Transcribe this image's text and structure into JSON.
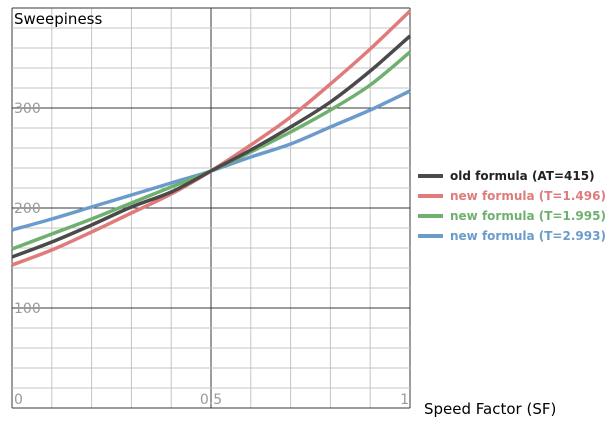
{
  "chart_data": {
    "type": "line",
    "title": "",
    "ylabel": "Sweepiness",
    "xlabel": "Speed Factor (SF)",
    "xlim": [
      0,
      1
    ],
    "ylim": [
      0,
      400
    ],
    "grid": true,
    "legend_position": "right",
    "x_tick_labels": [
      "0",
      "0.5",
      "1"
    ],
    "x_tick_values": [
      0,
      0.5,
      1
    ],
    "y_tick_labels": [
      "100",
      "200",
      "300"
    ],
    "y_tick_values": [
      100,
      200,
      300
    ],
    "x": [
      0,
      0.1,
      0.2,
      0.3,
      0.4,
      0.5,
      0.6,
      0.7,
      0.8,
      0.9,
      1.0
    ],
    "series": [
      {
        "name": "old formula (AT=415)",
        "color": "#4a4a4a",
        "values": [
          151,
          166,
          183,
          201,
          216,
          237,
          258,
          281,
          306,
          337,
          372
        ]
      },
      {
        "name": "new formula (T=1.496)",
        "color": "#e07b7b",
        "values": [
          143,
          158,
          176,
          195,
          214,
          237,
          263,
          291,
          324,
          359,
          397
        ]
      },
      {
        "name": "new formula (T=1.995)",
        "color": "#6fb06f",
        "values": [
          159,
          174,
          189,
          205,
          221,
          237,
          256,
          276,
          298,
          323,
          356
        ]
      },
      {
        "name": "new formula (T=2.993)",
        "color": "#6a9bcb",
        "values": [
          178,
          189,
          201,
          213,
          225,
          237,
          251,
          264,
          281,
          298,
          317
        ]
      }
    ]
  }
}
